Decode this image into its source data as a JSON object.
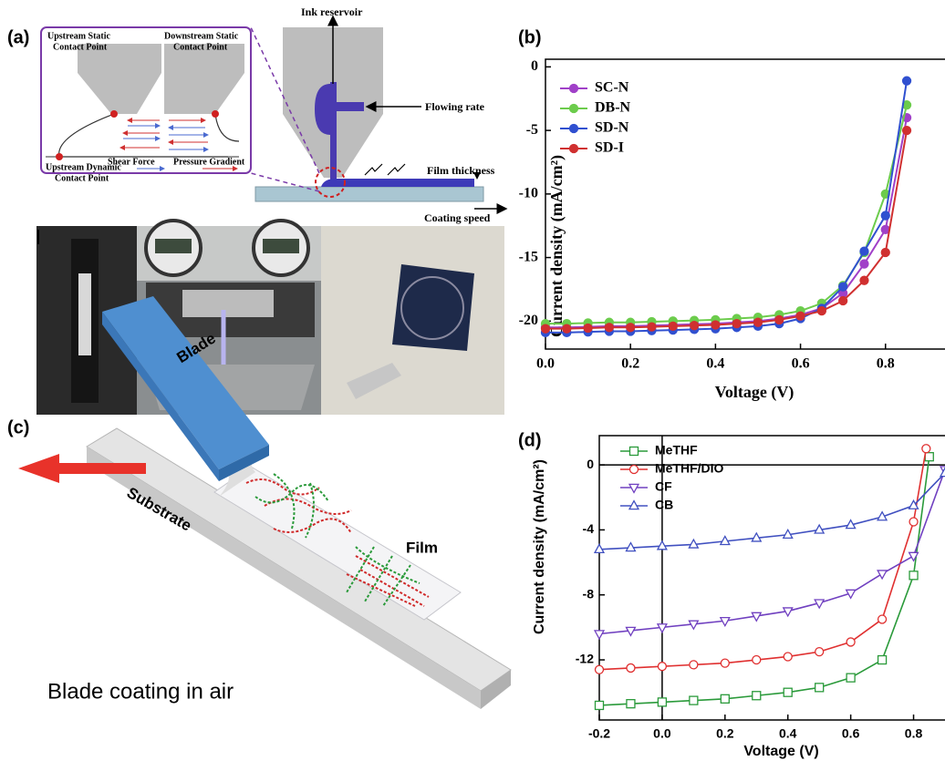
{
  "panels": {
    "a": "(a)",
    "b": "(b)",
    "c": "(c)",
    "d": "(d)"
  },
  "schematic": {
    "ink_reservoir": "Ink reservoir",
    "flowing_rate": "Flowing rate",
    "film_thickness": "Film thickness",
    "coating_speed": "Coating speed",
    "upstream_static": [
      "Upstream Static",
      "Contact Point"
    ],
    "downstream_static": [
      "Downstream Static",
      "Contact Point"
    ],
    "upstream_dynamic": [
      "Upstream Dynamic",
      "Contact Point"
    ],
    "shear_force": "Shear Force",
    "pressure_gradient": "Pressure Gradient"
  },
  "blade_coating": {
    "blade": "Blade",
    "film": "Film",
    "substrate": "Substrate",
    "caption": "Blade coating in air"
  },
  "chart_data": [
    {
      "type": "line",
      "xlabel": "Voltage (V)",
      "ylabel": "Current density (mA/cm²)",
      "xlim": [
        0,
        0.94
      ],
      "ylim": [
        -22.2,
        0.6
      ],
      "xticks": [
        {
          "value": 0,
          "label": "0.0"
        },
        0.2,
        0.4,
        0.6,
        0.8
      ],
      "yticks": [
        0,
        -5,
        -10,
        -15,
        -20
      ],
      "x": [
        0,
        0.05,
        0.1,
        0.15,
        0.2,
        0.25,
        0.3,
        0.35,
        0.4,
        0.45,
        0.5,
        0.55,
        0.6,
        0.65,
        0.7,
        0.75,
        0.8,
        0.85
      ],
      "open_markers": false,
      "series": [
        {
          "name": "SC-N",
          "color": "#a040c8",
          "marker": "circle",
          "values": [
            -20.5,
            -20.5,
            -20.45,
            -20.4,
            -20.4,
            -20.35,
            -20.3,
            -20.25,
            -20.2,
            -20.1,
            -20.0,
            -19.8,
            -19.5,
            -19.0,
            -17.8,
            -15.5,
            -12.8,
            -4.0
          ]
        },
        {
          "name": "DB-N",
          "color": "#6ccc4c",
          "marker": "circle",
          "values": [
            -20.2,
            -20.2,
            -20.15,
            -20.1,
            -20.1,
            -20.05,
            -20.0,
            -19.95,
            -19.9,
            -19.8,
            -19.7,
            -19.5,
            -19.2,
            -18.6,
            -17.2,
            -14.6,
            -10.0,
            -3.0
          ]
        },
        {
          "name": "SD-N",
          "color": "#3050d0",
          "marker": "circle",
          "values": [
            -20.9,
            -20.9,
            -20.85,
            -20.8,
            -20.8,
            -20.75,
            -20.7,
            -20.65,
            -20.6,
            -20.5,
            -20.4,
            -20.2,
            -19.8,
            -19.0,
            -17.3,
            -14.5,
            -11.7,
            -1.1
          ]
        },
        {
          "name": "SD-I",
          "color": "#d03030",
          "marker": "circle",
          "values": [
            -20.6,
            -20.6,
            -20.55,
            -20.5,
            -20.5,
            -20.45,
            -20.4,
            -20.35,
            -20.3,
            -20.2,
            -20.1,
            -19.9,
            -19.6,
            -19.2,
            -18.4,
            -16.8,
            -14.6,
            -5.0
          ]
        }
      ]
    },
    {
      "type": "line",
      "xlabel": "Voltage (V)",
      "ylabel": "Current density (mA/cm²)",
      "xlim": [
        -0.2,
        0.9
      ],
      "ylim": [
        -15.7,
        1.8
      ],
      "xticks": [
        -0.2,
        {
          "value": 0,
          "label": "0.0"
        },
        0.2,
        0.4,
        0.6,
        0.8
      ],
      "yticks": [
        0,
        -4,
        -8,
        -12
      ],
      "zero_lines": true,
      "open_markers": true,
      "series": [
        {
          "name": "MeTHF",
          "color": "#2a9a3a",
          "marker": "square",
          "x": [
            -0.2,
            -0.1,
            0,
            0.1,
            0.2,
            0.3,
            0.4,
            0.5,
            0.6,
            0.7,
            0.8,
            0.85
          ],
          "values": [
            -14.8,
            -14.7,
            -14.6,
            -14.5,
            -14.4,
            -14.2,
            -14.0,
            -13.7,
            -13.1,
            -12.0,
            -6.8,
            0.5
          ]
        },
        {
          "name": "MeTHF/DIO",
          "color": "#e03030",
          "marker": "circle",
          "x": [
            -0.2,
            -0.1,
            0,
            0.1,
            0.2,
            0.3,
            0.4,
            0.5,
            0.6,
            0.7,
            0.8,
            0.84
          ],
          "values": [
            -12.6,
            -12.5,
            -12.4,
            -12.3,
            -12.2,
            -12.0,
            -11.8,
            -11.5,
            -10.9,
            -9.5,
            -3.5,
            1.0
          ]
        },
        {
          "name": "CF",
          "color": "#7040c0",
          "marker": "triangle-down",
          "x": [
            -0.2,
            -0.1,
            0,
            0.1,
            0.2,
            0.3,
            0.4,
            0.5,
            0.6,
            0.7,
            0.8,
            0.9
          ],
          "values": [
            -10.4,
            -10.2,
            -10.0,
            -9.8,
            -9.6,
            -9.3,
            -9.0,
            -8.5,
            -7.9,
            -6.7,
            -5.6,
            -0.3
          ]
        },
        {
          "name": "CB",
          "color": "#4050c0",
          "marker": "triangle-up",
          "x": [
            -0.2,
            -0.1,
            0,
            0.1,
            0.2,
            0.3,
            0.4,
            0.5,
            0.6,
            0.7,
            0.8,
            0.9
          ],
          "values": [
            -5.2,
            -5.1,
            -5.0,
            -4.9,
            -4.7,
            -4.5,
            -4.3,
            -4.0,
            -3.7,
            -3.2,
            -2.5,
            -0.5
          ]
        }
      ]
    }
  ]
}
